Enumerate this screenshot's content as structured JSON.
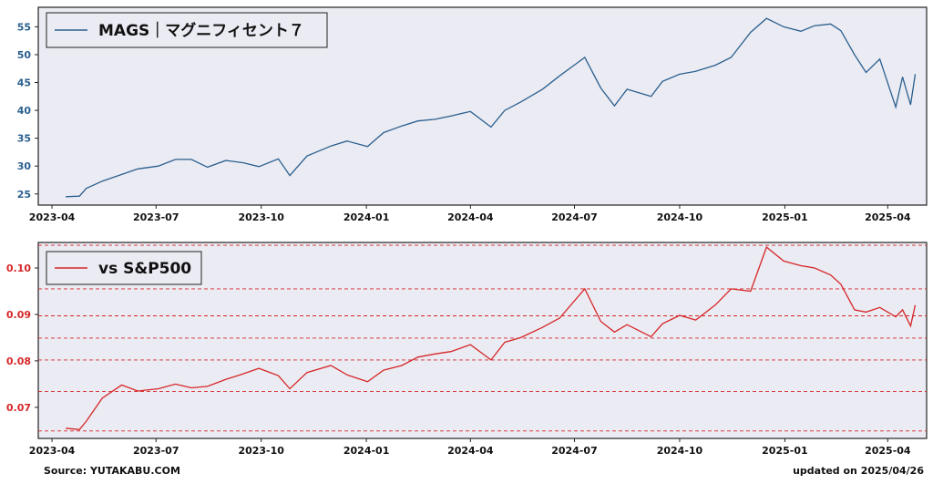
{
  "footer": {
    "source": "Source: YUTAKABU.COM",
    "updated": "updated on 2025/04/26"
  },
  "colors": {
    "upper_line": "#2a5f8e",
    "lower_line": "#d62728",
    "plot_bg": "#ebebf3"
  },
  "chart_data": [
    {
      "type": "line",
      "legend": "MAGS｜マグニフィセント７",
      "legend_position": "top-left",
      "grid": false,
      "ylim": [
        23,
        58.5
      ],
      "xlim": [
        "2023-03-20",
        "2025-05-05"
      ],
      "yticks": [
        25,
        30,
        35,
        40,
        45,
        50,
        55
      ],
      "ytick_labels": [
        "25",
        "30",
        "35",
        "40",
        "45",
        "50",
        "55"
      ],
      "xticks": [
        "2023-04-01",
        "2023-07-01",
        "2023-10-01",
        "2024-01-01",
        "2024-04-01",
        "2024-07-01",
        "2024-10-01",
        "2025-01-01",
        "2025-04-01"
      ],
      "xtick_labels": [
        "2023-04",
        "2023-07",
        "2023-10",
        "2024-01",
        "2024-04",
        "2024-07",
        "2024-10",
        "2025-01",
        "2025-04"
      ],
      "series": [
        {
          "color": "#2a5f8e",
          "x": [
            "2023-04-13",
            "2023-04-25",
            "2023-05-01",
            "2023-05-15",
            "2023-06-01",
            "2023-06-15",
            "2023-07-03",
            "2023-07-18",
            "2023-08-01",
            "2023-08-15",
            "2023-08-31",
            "2023-09-15",
            "2023-09-29",
            "2023-10-16",
            "2023-10-26",
            "2023-11-10",
            "2023-12-01",
            "2023-12-15",
            "2024-01-02",
            "2024-01-16",
            "2024-02-01",
            "2024-02-15",
            "2024-03-01",
            "2024-03-15",
            "2024-04-01",
            "2024-04-19",
            "2024-05-01",
            "2024-05-15",
            "2024-06-03",
            "2024-06-18",
            "2024-07-10",
            "2024-07-24",
            "2024-08-05",
            "2024-08-16",
            "2024-09-06",
            "2024-09-16",
            "2024-10-01",
            "2024-10-15",
            "2024-11-01",
            "2024-11-15",
            "2024-12-02",
            "2024-12-16",
            "2024-12-31",
            "2025-01-15",
            "2025-01-27",
            "2025-02-10",
            "2025-02-19",
            "2025-03-03",
            "2025-03-13",
            "2025-03-25",
            "2025-04-08",
            "2025-04-14",
            "2025-04-21",
            "2025-04-25"
          ],
          "y": [
            24.5,
            24.6,
            26.0,
            27.3,
            28.5,
            29.5,
            30.0,
            31.2,
            31.2,
            29.8,
            31.0,
            30.6,
            29.9,
            31.3,
            28.3,
            31.8,
            33.6,
            34.5,
            33.5,
            36.0,
            37.2,
            38.1,
            38.4,
            39.0,
            39.8,
            37.0,
            40.0,
            41.5,
            43.8,
            46.2,
            49.5,
            44.0,
            40.8,
            43.8,
            42.5,
            45.2,
            46.5,
            47.0,
            48.1,
            49.5,
            54.0,
            56.5,
            55.0,
            54.2,
            55.2,
            55.5,
            54.3,
            50.0,
            46.8,
            49.2,
            40.6,
            46.0,
            41.0,
            46.5
          ]
        }
      ]
    },
    {
      "type": "line",
      "legend": "vs S&P500",
      "legend_position": "top-left",
      "grid": false,
      "ylim": [
        0.0633,
        0.1055
      ],
      "xlim": [
        "2023-03-20",
        "2025-05-05"
      ],
      "yticks": [
        0.07,
        0.08,
        0.09,
        0.1
      ],
      "ytick_labels": [
        "0.07",
        "0.08",
        "0.09",
        "0.10"
      ],
      "hlines": [
        0.0649,
        0.0734,
        0.0802,
        0.0849,
        0.0897,
        0.0955,
        0.1049
      ],
      "xticks": [
        "2023-04-01",
        "2023-07-01",
        "2023-10-01",
        "2024-01-01",
        "2024-04-01",
        "2024-07-01",
        "2024-10-01",
        "2025-01-01",
        "2025-04-01"
      ],
      "xtick_labels": [
        "2023-04",
        "2023-07",
        "2023-10",
        "2024-01",
        "2024-04",
        "2024-07",
        "2024-10",
        "2025-01",
        "2025-04"
      ],
      "series": [
        {
          "color": "#d62728",
          "x": [
            "2023-04-13",
            "2023-04-25",
            "2023-05-01",
            "2023-05-15",
            "2023-06-01",
            "2023-06-15",
            "2023-07-03",
            "2023-07-18",
            "2023-08-01",
            "2023-08-15",
            "2023-08-31",
            "2023-09-15",
            "2023-09-29",
            "2023-10-16",
            "2023-10-26",
            "2023-11-10",
            "2023-12-01",
            "2023-12-15",
            "2024-01-02",
            "2024-01-16",
            "2024-02-01",
            "2024-02-15",
            "2024-03-01",
            "2024-03-15",
            "2024-04-01",
            "2024-04-19",
            "2024-05-01",
            "2024-05-15",
            "2024-06-03",
            "2024-06-18",
            "2024-07-10",
            "2024-07-24",
            "2024-08-05",
            "2024-08-16",
            "2024-09-06",
            "2024-09-16",
            "2024-10-01",
            "2024-10-15",
            "2024-11-01",
            "2024-11-15",
            "2024-12-02",
            "2024-12-16",
            "2024-12-31",
            "2025-01-15",
            "2025-01-27",
            "2025-02-10",
            "2025-02-19",
            "2025-03-03",
            "2025-03-13",
            "2025-03-25",
            "2025-04-08",
            "2025-04-14",
            "2025-04-21",
            "2025-04-25"
          ],
          "y": [
            0.0655,
            0.0652,
            0.067,
            0.072,
            0.0748,
            0.0735,
            0.074,
            0.075,
            0.0742,
            0.0745,
            0.076,
            0.0772,
            0.0784,
            0.0768,
            0.074,
            0.0775,
            0.079,
            0.077,
            0.0755,
            0.078,
            0.079,
            0.0808,
            0.0815,
            0.082,
            0.0835,
            0.0802,
            0.084,
            0.085,
            0.0872,
            0.0892,
            0.0955,
            0.0885,
            0.0862,
            0.0878,
            0.0852,
            0.088,
            0.0898,
            0.0888,
            0.092,
            0.0955,
            0.095,
            0.1045,
            0.1015,
            0.1005,
            0.1,
            0.0985,
            0.0965,
            0.091,
            0.0905,
            0.0915,
            0.0895,
            0.091,
            0.0875,
            0.092
          ]
        }
      ]
    }
  ]
}
